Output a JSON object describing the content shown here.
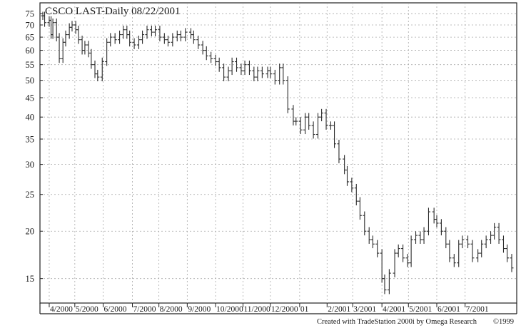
{
  "chart_data": {
    "type": "bar",
    "style": "ohlc-daily",
    "title": "CSCO LAST-Daily  08/22/2001",
    "y_scale": "log",
    "ylim": [
      13.5,
      78
    ],
    "y_ticks": [
      15,
      20,
      25,
      30,
      35,
      40,
      45,
      50,
      55,
      60,
      65,
      70,
      75
    ],
    "grid": true,
    "x_tick_labels": [
      "4/2000",
      "5/2000",
      "6/2000",
      "7/2000",
      "8/2000",
      "9/2000",
      "10/2000",
      "11/2000",
      "12/2000",
      "01",
      "2/2001",
      "3/2001",
      "4/2001",
      "5/2001",
      "6/2001",
      "7/2001"
    ],
    "x_tick_dates": [
      "2000-04-03",
      "2000-05-01",
      "2000-06-01",
      "2000-07-03",
      "2000-08-01",
      "2000-09-01",
      "2000-10-02",
      "2000-11-01",
      "2000-12-01",
      "2001-01-02",
      "2001-02-01",
      "2001-03-01",
      "2001-04-02",
      "2001-05-01",
      "2001-06-01",
      "2001-07-02"
    ],
    "x_range": [
      "2000-03-27",
      "2001-08-22"
    ],
    "series": [
      {
        "points": [
          [
            "2000-03-27",
            74
          ],
          [
            "2000-03-29",
            71
          ],
          [
            "2000-04-03",
            72
          ],
          [
            "2000-04-05",
            66
          ],
          [
            "2000-04-07",
            71
          ],
          [
            "2000-04-11",
            65
          ],
          [
            "2000-04-14",
            57
          ],
          [
            "2000-04-18",
            63
          ],
          [
            "2000-04-21",
            66
          ],
          [
            "2000-04-25",
            69
          ],
          [
            "2000-04-28",
            70
          ],
          [
            "2000-05-02",
            68
          ],
          [
            "2000-05-05",
            64
          ],
          [
            "2000-05-09",
            60
          ],
          [
            "2000-05-12",
            62
          ],
          [
            "2000-05-16",
            59
          ],
          [
            "2000-05-19",
            55
          ],
          [
            "2000-05-23",
            52
          ],
          [
            "2000-05-26",
            51
          ],
          [
            "2000-05-31",
            56
          ],
          [
            "2000-06-05",
            63
          ],
          [
            "2000-06-09",
            65
          ],
          [
            "2000-06-14",
            64
          ],
          [
            "2000-06-19",
            66
          ],
          [
            "2000-06-23",
            68
          ],
          [
            "2000-06-27",
            66
          ],
          [
            "2000-06-30",
            63
          ],
          [
            "2000-07-05",
            62
          ],
          [
            "2000-07-10",
            64
          ],
          [
            "2000-07-14",
            66
          ],
          [
            "2000-07-19",
            68
          ],
          [
            "2000-07-24",
            67
          ],
          [
            "2000-07-28",
            68
          ],
          [
            "2000-08-02",
            65
          ],
          [
            "2000-08-07",
            64
          ],
          [
            "2000-08-11",
            63
          ],
          [
            "2000-08-16",
            65
          ],
          [
            "2000-08-21",
            66
          ],
          [
            "2000-08-25",
            65
          ],
          [
            "2000-08-30",
            67
          ],
          [
            "2000-09-05",
            66
          ],
          [
            "2000-09-08",
            64
          ],
          [
            "2000-09-13",
            62
          ],
          [
            "2000-09-18",
            60
          ],
          [
            "2000-09-22",
            58
          ],
          [
            "2000-09-27",
            57
          ],
          [
            "2000-10-02",
            56
          ],
          [
            "2000-10-06",
            54
          ],
          [
            "2000-10-11",
            51
          ],
          [
            "2000-10-16",
            53
          ],
          [
            "2000-10-20",
            56
          ],
          [
            "2000-10-25",
            54
          ],
          [
            "2000-10-30",
            53
          ],
          [
            "2000-11-03",
            55
          ],
          [
            "2000-11-08",
            53
          ],
          [
            "2000-11-13",
            51
          ],
          [
            "2000-11-17",
            53
          ],
          [
            "2000-11-22",
            52
          ],
          [
            "2000-11-28",
            53
          ],
          [
            "2000-12-01",
            52
          ],
          [
            "2000-12-06",
            50
          ],
          [
            "2000-12-11",
            54
          ],
          [
            "2000-12-15",
            50
          ],
          [
            "2000-12-20",
            42
          ],
          [
            "2000-12-26",
            39
          ],
          [
            "2000-12-29",
            39
          ],
          [
            "2001-01-03",
            37
          ],
          [
            "2001-01-08",
            40
          ],
          [
            "2001-01-12",
            38
          ],
          [
            "2001-01-17",
            36
          ],
          [
            "2001-01-22",
            40
          ],
          [
            "2001-01-26",
            41
          ],
          [
            "2001-01-31",
            38
          ],
          [
            "2001-02-05",
            38
          ],
          [
            "2001-02-09",
            34
          ],
          [
            "2001-02-14",
            31
          ],
          [
            "2001-02-20",
            29
          ],
          [
            "2001-02-23",
            27
          ],
          [
            "2001-02-28",
            26
          ],
          [
            "2001-03-05",
            24
          ],
          [
            "2001-03-09",
            22
          ],
          [
            "2001-03-14",
            20
          ],
          [
            "2001-03-19",
            19
          ],
          [
            "2001-03-23",
            18.5
          ],
          [
            "2001-03-28",
            17.5
          ],
          [
            "2001-04-02",
            15
          ],
          [
            "2001-04-05",
            14
          ],
          [
            "2001-04-10",
            15.5
          ],
          [
            "2001-04-16",
            17.5
          ],
          [
            "2001-04-20",
            18
          ],
          [
            "2001-04-25",
            17
          ],
          [
            "2001-04-30",
            16.5
          ],
          [
            "2001-05-04",
            19
          ],
          [
            "2001-05-09",
            19.5
          ],
          [
            "2001-05-14",
            19
          ],
          [
            "2001-05-18",
            20
          ],
          [
            "2001-05-23",
            22.5
          ],
          [
            "2001-05-29",
            21.5
          ],
          [
            "2001-06-01",
            21
          ],
          [
            "2001-06-06",
            20
          ],
          [
            "2001-06-11",
            18.5
          ],
          [
            "2001-06-15",
            17
          ],
          [
            "2001-06-20",
            16.5
          ],
          [
            "2001-06-25",
            18.5
          ],
          [
            "2001-06-29",
            19
          ],
          [
            "2001-07-05",
            18.5
          ],
          [
            "2001-07-10",
            17
          ],
          [
            "2001-07-16",
            17.5
          ],
          [
            "2001-07-20",
            18.5
          ],
          [
            "2001-07-25",
            19
          ],
          [
            "2001-07-30",
            19.5
          ],
          [
            "2001-08-03",
            20.5
          ],
          [
            "2001-08-08",
            19
          ],
          [
            "2001-08-13",
            18
          ],
          [
            "2001-08-17",
            17
          ],
          [
            "2001-08-22",
            16
          ]
        ]
      }
    ]
  },
  "footer": {
    "credit": "Created with TradeStation 2000i by Omega Research",
    "copyright": "©1999"
  }
}
